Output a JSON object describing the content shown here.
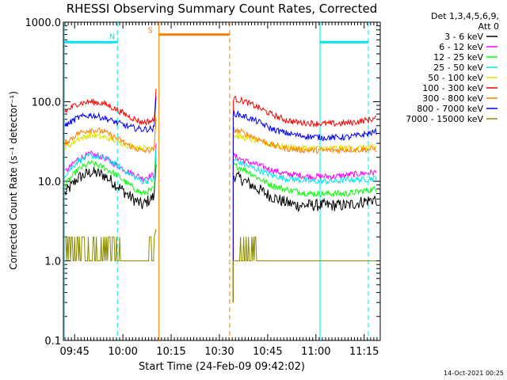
{
  "chart_data": {
    "type": "line",
    "title": "RHESSI Observing Summary Count Rates, Corrected",
    "xlabel": "Start Time (24-Feb-09 09:42:02)",
    "ylabel": "Corrected Count Rate (s⁻¹ detector⁻¹)",
    "yscale": "log",
    "ylim": [
      0.1,
      1000
    ],
    "xlim_minutes": [
      -0.5,
      98.0
    ],
    "y_ticks": [
      "0.1",
      "1.0",
      "10.0",
      "100.0",
      "1000.0"
    ],
    "x_ticks": [
      "09:45",
      "10:00",
      "10:15",
      "10:30",
      "10:45",
      "11:00",
      "11:15"
    ],
    "x_ticks_min": [
      3,
      18,
      33,
      48,
      63,
      78,
      93
    ],
    "legend_header": [
      "Det 1,3,4,5,6,9,",
      "Att 0"
    ],
    "legend_position": "right",
    "timestamp": "14-Oct-2021 00:25",
    "flags": {
      "night": {
        "label": "N",
        "color": "#00e5ee",
        "bars": [
          [
            -0.2,
            16.3
          ],
          [
            79.3,
            94.3
          ]
        ],
        "level": 560
      },
      "saa": {
        "label": "S",
        "color": "#ff7f00",
        "bars": [
          [
            29.2,
            51.2
          ]
        ],
        "level": 700
      }
    },
    "vlines": [
      {
        "x": -0.2,
        "color": "#00e5ee",
        "dash": false
      },
      {
        "x": 16.3,
        "color": "#00e5ee",
        "dash": true
      },
      {
        "x": 29.2,
        "color": "#ff7f00",
        "dash": false
      },
      {
        "x": 51.2,
        "color": "#ff7f00",
        "dash": true
      },
      {
        "x": 79.3,
        "color": "#00e5ee",
        "dash": false
      },
      {
        "x": 94.3,
        "color": "#00e5ee",
        "dash": true
      }
    ],
    "segments": [
      [
        0,
        27.8
      ],
      [
        52.3,
        96.8
      ]
    ],
    "x": [
      0,
      4,
      8,
      12,
      16,
      20,
      24,
      27.8,
      52.3,
      56,
      60,
      64,
      68,
      72,
      76,
      80,
      84,
      88,
      92,
      96.8
    ],
    "series": [
      {
        "name": "3 - 6 keV",
        "color": "#000000",
        "values": [
          7,
          11,
          13,
          12,
          9,
          6.5,
          5,
          6.5,
          12,
          10,
          8,
          6.5,
          5.5,
          5,
          5,
          5,
          5,
          5,
          5.5,
          6
        ]
      },
      {
        "name": "6 - 12 keV",
        "color": "#ff00ff",
        "values": [
          13,
          19,
          22,
          20,
          16,
          13,
          11,
          12,
          21,
          18,
          16,
          14,
          12.5,
          12,
          11.5,
          11.5,
          11.5,
          12,
          12.5,
          13
        ]
      },
      {
        "name": "12 - 25 keV",
        "color": "#00ff00",
        "values": [
          9,
          14,
          17,
          15,
          12,
          9,
          7,
          8,
          16,
          14,
          11,
          9,
          8,
          7.5,
          7,
          7,
          7,
          7,
          7.5,
          8
        ]
      },
      {
        "name": "25 - 50 keV",
        "color": "#00e5ee",
        "values": [
          12,
          18,
          21,
          20,
          16,
          12.5,
          10,
          10.5,
          19,
          16,
          14,
          12,
          11,
          10.5,
          10,
          10,
          10,
          10.5,
          10.5,
          11
        ]
      },
      {
        "name": "50 - 100 keV",
        "color": "#e0e000",
        "values": [
          26,
          34,
          38,
          36,
          32,
          28,
          26,
          27,
          38,
          35,
          32,
          29,
          27,
          26.5,
          26,
          26,
          26,
          26,
          26.5,
          27
        ]
      },
      {
        "name": "100 - 300 keV",
        "color": "#ff0000",
        "values": [
          75,
          95,
          100,
          95,
          80,
          65,
          55,
          58,
          110,
          100,
          85,
          70,
          60,
          55,
          54,
          53,
          53,
          54,
          57,
          62
        ]
      },
      {
        "name": "300 - 800 keV",
        "color": "#ff7f00",
        "values": [
          30,
          40,
          45,
          42,
          35,
          28,
          24,
          25,
          45,
          40,
          34,
          29,
          26,
          25,
          24.5,
          24.5,
          24.5,
          25,
          25,
          25.5
        ]
      },
      {
        "name": "800 - 7000 keV",
        "color": "#0000ff",
        "values": [
          50,
          63,
          68,
          63,
          55,
          48,
          45,
          46,
          72,
          65,
          56,
          46,
          41,
          38,
          36.5,
          35.5,
          35.5,
          36,
          38,
          42
        ]
      },
      {
        "name": "7000 - 15000 keV",
        "color": "#8b8b00",
        "values": [
          1.5,
          2,
          2.2,
          2,
          1.5,
          1.2,
          1.0,
          1.0,
          1.5,
          1.4,
          1.2,
          1.05,
          1.0,
          1.0,
          1.0,
          1.0,
          1.0,
          1.0,
          1.0,
          1.0
        ]
      }
    ]
  }
}
